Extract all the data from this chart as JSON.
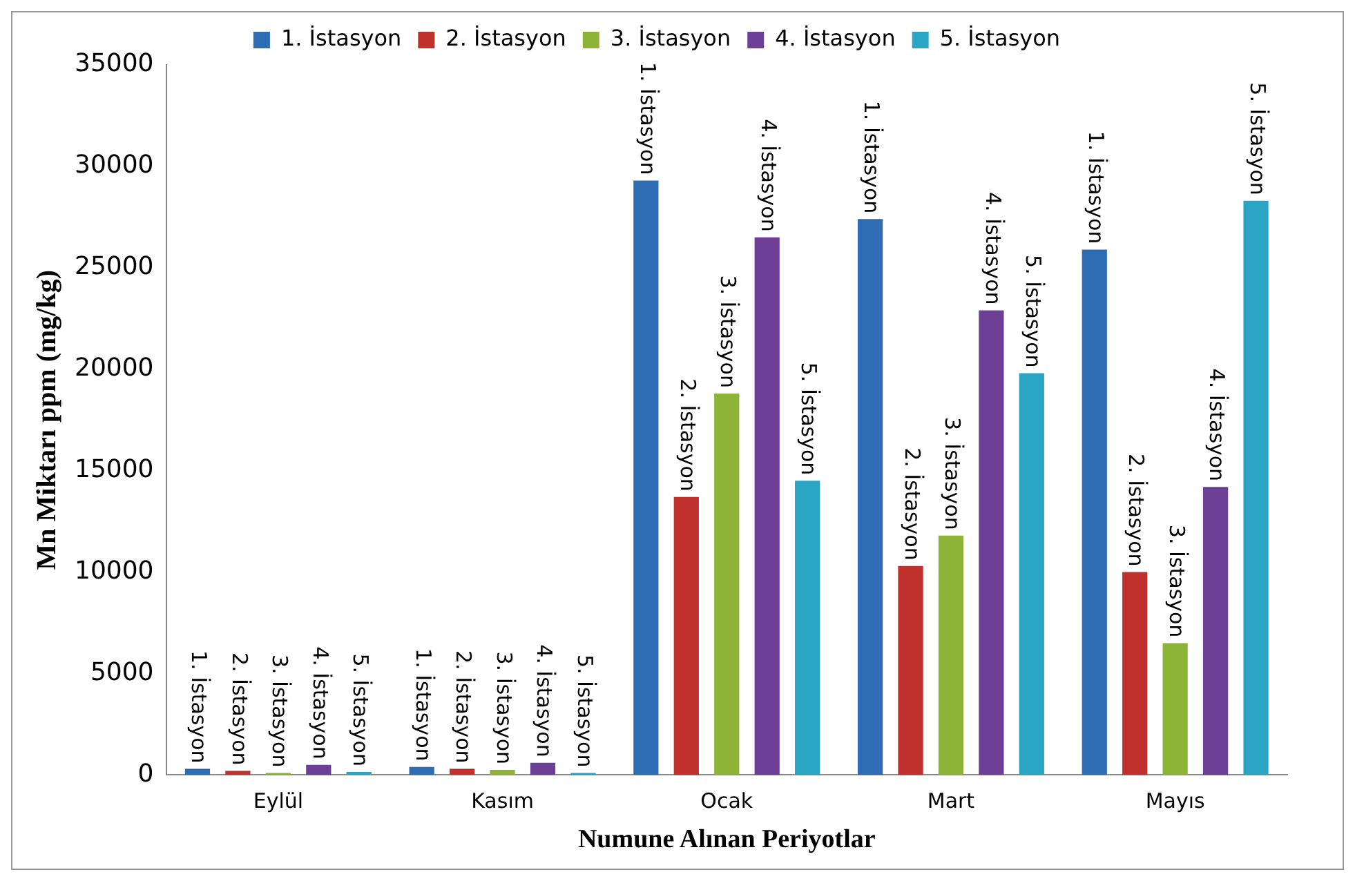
{
  "chart_data": {
    "type": "bar",
    "xlabel": "Numune Alınan Periyotlar",
    "ylabel": "Mn Miktarı ppm (mg/kg)",
    "categories": [
      "Eylül",
      "Kasım",
      "Ocak",
      "Mart",
      "Mayıs"
    ],
    "series": [
      {
        "name": "1. İstasyon",
        "color": "#2e6db4",
        "values": [
          300,
          400,
          29300,
          27400,
          25900
        ]
      },
      {
        "name": "2. İstasyon",
        "color": "#c0302c",
        "values": [
          200,
          300,
          13700,
          10300,
          10000
        ]
      },
      {
        "name": "3. İstasyon",
        "color": "#8db337",
        "values": [
          100,
          250,
          18800,
          11800,
          6500
        ]
      },
      {
        "name": "4. İstasyon",
        "color": "#6e3f96",
        "values": [
          500,
          600,
          26500,
          22900,
          14200
        ]
      },
      {
        "name": "5. İstasyon",
        "color": "#2aa6c4",
        "values": [
          150,
          100,
          14500,
          19800,
          28300
        ]
      }
    ],
    "annotations": [
      "1. İstasyon",
      "2. İstasyon",
      "3. İstasyon",
      "4. İstasyon",
      "5. İstasyon",
      "1. İstasyon",
      "2. İstasyon",
      "3. İstasyon",
      "4. İstasyon",
      "5. İstasyon",
      "1. İstasyon",
      "2. İstasyon",
      "3. İstasyon",
      "4. İstasyon",
      "5. İstasyon",
      "1. İstasyon",
      "2. İstasyon",
      "3. İstasyon",
      "4. İstasyon",
      "5. İstasyon",
      "1. İstasyon",
      "2. İstasyon",
      "3. İstasyon",
      "4. İstasyon",
      "5. İstasyon"
    ],
    "ylim": [
      0,
      35000
    ],
    "yticks": [
      0,
      5000,
      10000,
      15000,
      20000,
      25000,
      30000,
      35000
    ],
    "grid": false,
    "legend": "top"
  }
}
